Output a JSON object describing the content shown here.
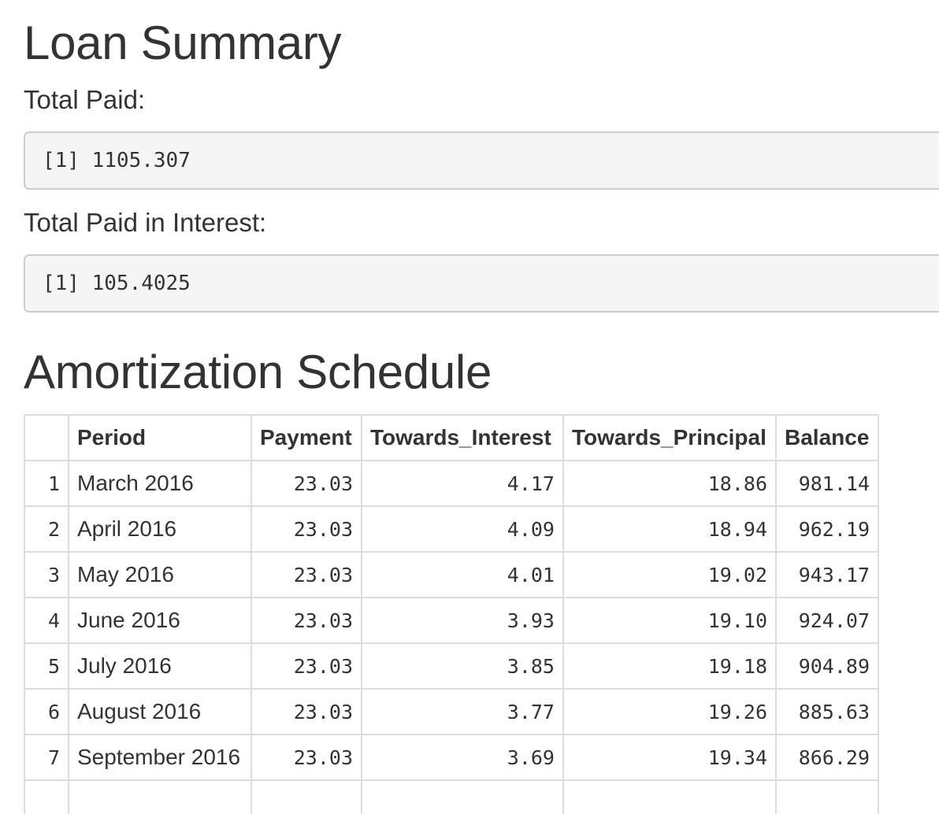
{
  "loan_summary": {
    "title": "Loan Summary",
    "total_paid_label": "Total Paid:",
    "total_paid_output": "[1] 1105.307",
    "total_interest_label": "Total Paid in Interest:",
    "total_interest_output": "[1] 105.4025"
  },
  "amortization": {
    "title": "Amortization Schedule",
    "columns": [
      "",
      "Period",
      "Payment",
      "Towards_Interest",
      "Towards_Principal",
      "Balance"
    ],
    "rows": [
      [
        "1",
        "March 2016",
        "23.03",
        "4.17",
        "18.86",
        "981.14"
      ],
      [
        "2",
        "April 2016",
        "23.03",
        "4.09",
        "18.94",
        "962.19"
      ],
      [
        "3",
        "May 2016",
        "23.03",
        "4.01",
        "19.02",
        "943.17"
      ],
      [
        "4",
        "June 2016",
        "23.03",
        "3.93",
        "19.10",
        "924.07"
      ],
      [
        "5",
        "July 2016",
        "23.03",
        "3.85",
        "19.18",
        "904.89"
      ],
      [
        "6",
        "August 2016",
        "23.03",
        "3.77",
        "19.26",
        "885.63"
      ],
      [
        "7",
        "September 2016",
        "23.03",
        "3.69",
        "19.34",
        "866.29"
      ],
      [
        "",
        "",
        "",
        "",
        "",
        ""
      ]
    ]
  }
}
